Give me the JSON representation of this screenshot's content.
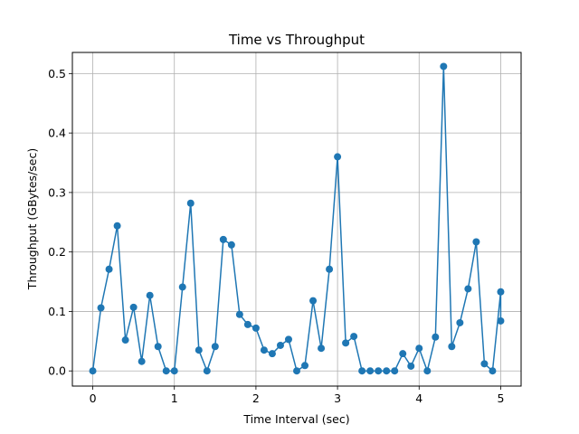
{
  "chart_data": {
    "type": "line",
    "title": "Time vs Throughput",
    "xlabel": "Time Interval (sec)",
    "ylabel": "Throughput (GBytes/sec)",
    "xlim": [
      -0.25,
      5.25
    ],
    "ylim": [
      -0.0255,
      0.5355
    ],
    "xticks": [
      0,
      1,
      2,
      3,
      4,
      5
    ],
    "yticks": [
      0.0,
      0.1,
      0.2,
      0.3,
      0.4,
      0.5
    ],
    "xtick_labels": [
      "0",
      "1",
      "2",
      "3",
      "4",
      "5"
    ],
    "ytick_labels": [
      "0.0",
      "0.1",
      "0.2",
      "0.3",
      "0.4",
      "0.5"
    ],
    "grid": true,
    "line_color": "#1f77b4",
    "marker": "circle",
    "series": [
      {
        "x": [
          0.0,
          0.1,
          0.2,
          0.3,
          0.4,
          0.5,
          0.6,
          0.7,
          0.8,
          0.9,
          1.0,
          1.1,
          1.2,
          1.3,
          1.4,
          1.5,
          1.6,
          1.7,
          1.8,
          1.9,
          2.0,
          2.1,
          2.2,
          2.3,
          2.4,
          2.5,
          2.6,
          2.7,
          2.8,
          2.9,
          3.0,
          3.1,
          3.2,
          3.3,
          3.4,
          3.5,
          3.6,
          3.7,
          3.8,
          3.9,
          4.0,
          4.1,
          4.2,
          4.3,
          4.4,
          4.5,
          4.6,
          4.7,
          4.8,
          4.9,
          5.0,
          5.0
        ],
        "values": [
          0.0,
          0.106,
          0.171,
          0.244,
          0.052,
          0.107,
          0.016,
          0.127,
          0.041,
          0.0,
          0.0,
          0.141,
          0.282,
          0.035,
          0.0,
          0.041,
          0.221,
          0.212,
          0.095,
          0.078,
          0.072,
          0.035,
          0.029,
          0.043,
          0.053,
          0.0,
          0.009,
          0.118,
          0.038,
          0.171,
          0.36,
          0.047,
          0.058,
          0.0,
          0.0,
          0.0,
          0.0,
          0.0,
          0.029,
          0.008,
          0.038,
          0.0,
          0.057,
          0.512,
          0.041,
          0.081,
          0.138,
          0.217,
          0.012,
          0.0,
          0.133,
          0.084
        ]
      }
    ]
  }
}
